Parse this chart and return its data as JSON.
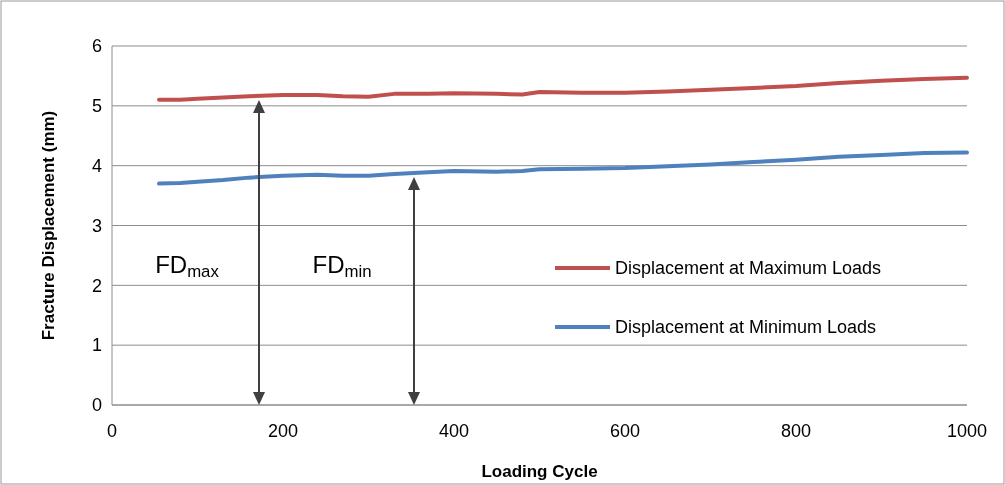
{
  "chart_data": {
    "type": "line",
    "xlabel": "Loading Cycle",
    "ylabel": "Fracture Displacement (mm)",
    "xlim": [
      0,
      1000
    ],
    "xticks": [
      0,
      200,
      400,
      600,
      800,
      1000
    ],
    "ylim": [
      0,
      6
    ],
    "yticks": [
      0,
      1,
      2,
      3,
      4,
      5,
      6
    ],
    "grid": "y",
    "legend": "right",
    "marker": "none",
    "line_style": "solid",
    "series": [
      {
        "name": "Displacement at Maximum Loads",
        "color": "#c0504d",
        "x": [
          55,
          80,
          100,
          130,
          160,
          200,
          240,
          270,
          300,
          330,
          370,
          400,
          450,
          480,
          500,
          550,
          600,
          650,
          700,
          750,
          800,
          850,
          900,
          950,
          1000
        ],
        "values": [
          5.1,
          5.1,
          5.12,
          5.14,
          5.16,
          5.18,
          5.18,
          5.16,
          5.15,
          5.2,
          5.2,
          5.21,
          5.2,
          5.19,
          5.23,
          5.22,
          5.22,
          5.24,
          5.27,
          5.3,
          5.33,
          5.38,
          5.42,
          5.45,
          5.47
        ]
      },
      {
        "name": "Displacement at Minimum Loads",
        "color": "#4f81bd",
        "x": [
          55,
          80,
          100,
          130,
          160,
          200,
          240,
          270,
          300,
          330,
          370,
          400,
          450,
          480,
          500,
          550,
          600,
          650,
          700,
          750,
          800,
          850,
          900,
          950,
          1000
        ],
        "values": [
          3.7,
          3.71,
          3.73,
          3.76,
          3.8,
          3.83,
          3.85,
          3.83,
          3.83,
          3.86,
          3.89,
          3.91,
          3.9,
          3.91,
          3.94,
          3.95,
          3.96,
          3.99,
          4.02,
          4.06,
          4.1,
          4.15,
          4.18,
          4.21,
          4.22
        ]
      }
    ],
    "annotations": [
      "FD$_{max}$",
      "FD$_{min}$"
    ]
  }
}
